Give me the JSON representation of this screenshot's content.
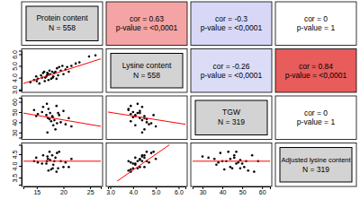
{
  "chart_data": {
    "type": "scatter_matrix",
    "marker": "circle",
    "color": "#000000",
    "variables": [
      {
        "name": "Protein content",
        "n_label": "N = 558",
        "color": "#d3d3d3",
        "lim": [
          12.5,
          27
        ],
        "ticks": [
          15,
          20,
          25
        ],
        "values": [
          15.2,
          16.0,
          17.1,
          18.3,
          19.5,
          14.5,
          16.8,
          17.9,
          20.4,
          21.5,
          15.8,
          16.5,
          18.0,
          17.4,
          19.0,
          22.3,
          24.8,
          13.8,
          16.2,
          17.7,
          18.8,
          20.0,
          15.5,
          16.9,
          18.5,
          19.8,
          21.0,
          14.9,
          17.2,
          23.0,
          16.4,
          18.1,
          19.2,
          15.0,
          20.7,
          17.0,
          18.7,
          16.6,
          26.0,
          17.5
        ]
      },
      {
        "name": "Lysine content",
        "n_label": "N = 558",
        "color": "#d3d3d3",
        "lim": [
          2.9,
          6.3
        ],
        "ticks": [
          {
            "value": 3,
            "label": "3.0"
          },
          {
            "value": 4,
            "label": "4.0"
          },
          {
            "value": 5,
            "label": "5.0"
          },
          {
            "value": 6,
            "label": "6.0"
          }
        ],
        "values": [
          3.9,
          4.0,
          4.3,
          4.4,
          4.6,
          3.8,
          4.1,
          4.5,
          4.7,
          5.0,
          4.2,
          3.7,
          4.0,
          4.6,
          4.2,
          5.2,
          5.8,
          3.6,
          4.4,
          3.9,
          4.8,
          4.3,
          3.5,
          4.2,
          4.5,
          5.0,
          4.5,
          4.1,
          3.8,
          5.3,
          4.5,
          4.1,
          4.9,
          3.7,
          4.9,
          4.4,
          3.9,
          4.0,
          5.9,
          4.3
        ]
      },
      {
        "name": "TGW",
        "n_label": "N = 319",
        "color": "#d3d3d3",
        "lim": [
          25,
          64
        ],
        "ticks": [
          30,
          40,
          50,
          60
        ],
        "values": [
          48,
          50,
          44,
          42,
          40,
          52,
          47,
          46,
          38,
          36,
          null,
          null,
          45,
          43,
          49,
          null,
          null,
          null,
          55,
          41,
          39,
          51,
          null,
          58,
          33,
          null,
          44,
          46,
          53,
          null,
          null,
          37,
          47,
          null,
          null,
          30,
          56,
          null,
          null,
          49
        ]
      },
      {
        "name": "Adjusted lysine content",
        "n_label": "N = 319",
        "color": "#d3d3d3",
        "lim": [
          3.2,
          4.9
        ],
        "ticks": [
          {
            "value": 3.5,
            "label": "3.5"
          },
          {
            "value": 4,
            "label": "4.0"
          },
          {
            "value": 4.5,
            "label": "4.5"
          }
        ],
        "values": [
          4.15,
          4.1,
          4.3,
          4.2,
          4.2,
          4.2,
          4.1,
          4.45,
          4.15,
          4.3,
          null,
          null,
          3.9,
          4.6,
          3.9,
          null,
          null,
          null,
          4.45,
          3.85,
          4.55,
          3.95,
          null,
          4.2,
          4.35,
          null,
          3.95,
          4.35,
          3.8,
          null,
          null,
          4.05,
          4.6,
          null,
          null,
          4.4,
          3.75,
          null,
          null,
          4.25
        ]
      }
    ],
    "correlations": [
      {
        "vars": [
          0,
          1
        ],
        "labels": [
          "cor = 0.63",
          "p-value = <0,0001"
        ],
        "color": "#f4a4a4"
      },
      {
        "vars": [
          0,
          2
        ],
        "labels": [
          "cor = -0.3",
          "p-value = <0,0001"
        ],
        "color": "#d8d8f6"
      },
      {
        "vars": [
          0,
          3
        ],
        "labels": [
          "cor = 0",
          "p-value = 1"
        ],
        "color": "#ffffff"
      },
      {
        "vars": [
          1,
          2
        ],
        "labels": [
          "cor = -0.26",
          "p-value = <0,0001"
        ],
        "color": "#dcdcf7"
      },
      {
        "vars": [
          1,
          3
        ],
        "labels": [
          "cor = 0.84",
          "p-value = <0,0001"
        ],
        "color": "#e85c5c"
      },
      {
        "vars": [
          2,
          3
        ],
        "labels": [
          "cor = 0",
          "p-value = 1"
        ],
        "color": "#ffffff"
      }
    ],
    "fits": [
      {
        "vars": [
          0,
          1
        ],
        "x": [
          12.5,
          27
        ],
        "y": [
          3.5,
          5.6
        ],
        "color": "#ff0000"
      },
      {
        "vars": [
          0,
          2
        ],
        "x": [
          12.5,
          27
        ],
        "y": [
          49,
          36
        ],
        "color": "#ff0000"
      },
      {
        "vars": [
          1,
          2
        ],
        "x": [
          2.9,
          6.3
        ],
        "y": [
          50,
          38
        ],
        "color": "#ff0000"
      },
      {
        "vars": [
          0,
          3
        ],
        "x": [
          12.5,
          27
        ],
        "y": [
          4.2,
          4.2
        ],
        "color": "#ff0000"
      },
      {
        "vars": [
          1,
          3
        ],
        "x": [
          3.3,
          5.6
        ],
        "y": [
          3.35,
          4.9
        ],
        "color": "#ff0000"
      },
      {
        "vars": [
          2,
          3
        ],
        "x": [
          25,
          64
        ],
        "y": [
          4.2,
          4.2
        ],
        "color": "#ff0000"
      }
    ]
  }
}
